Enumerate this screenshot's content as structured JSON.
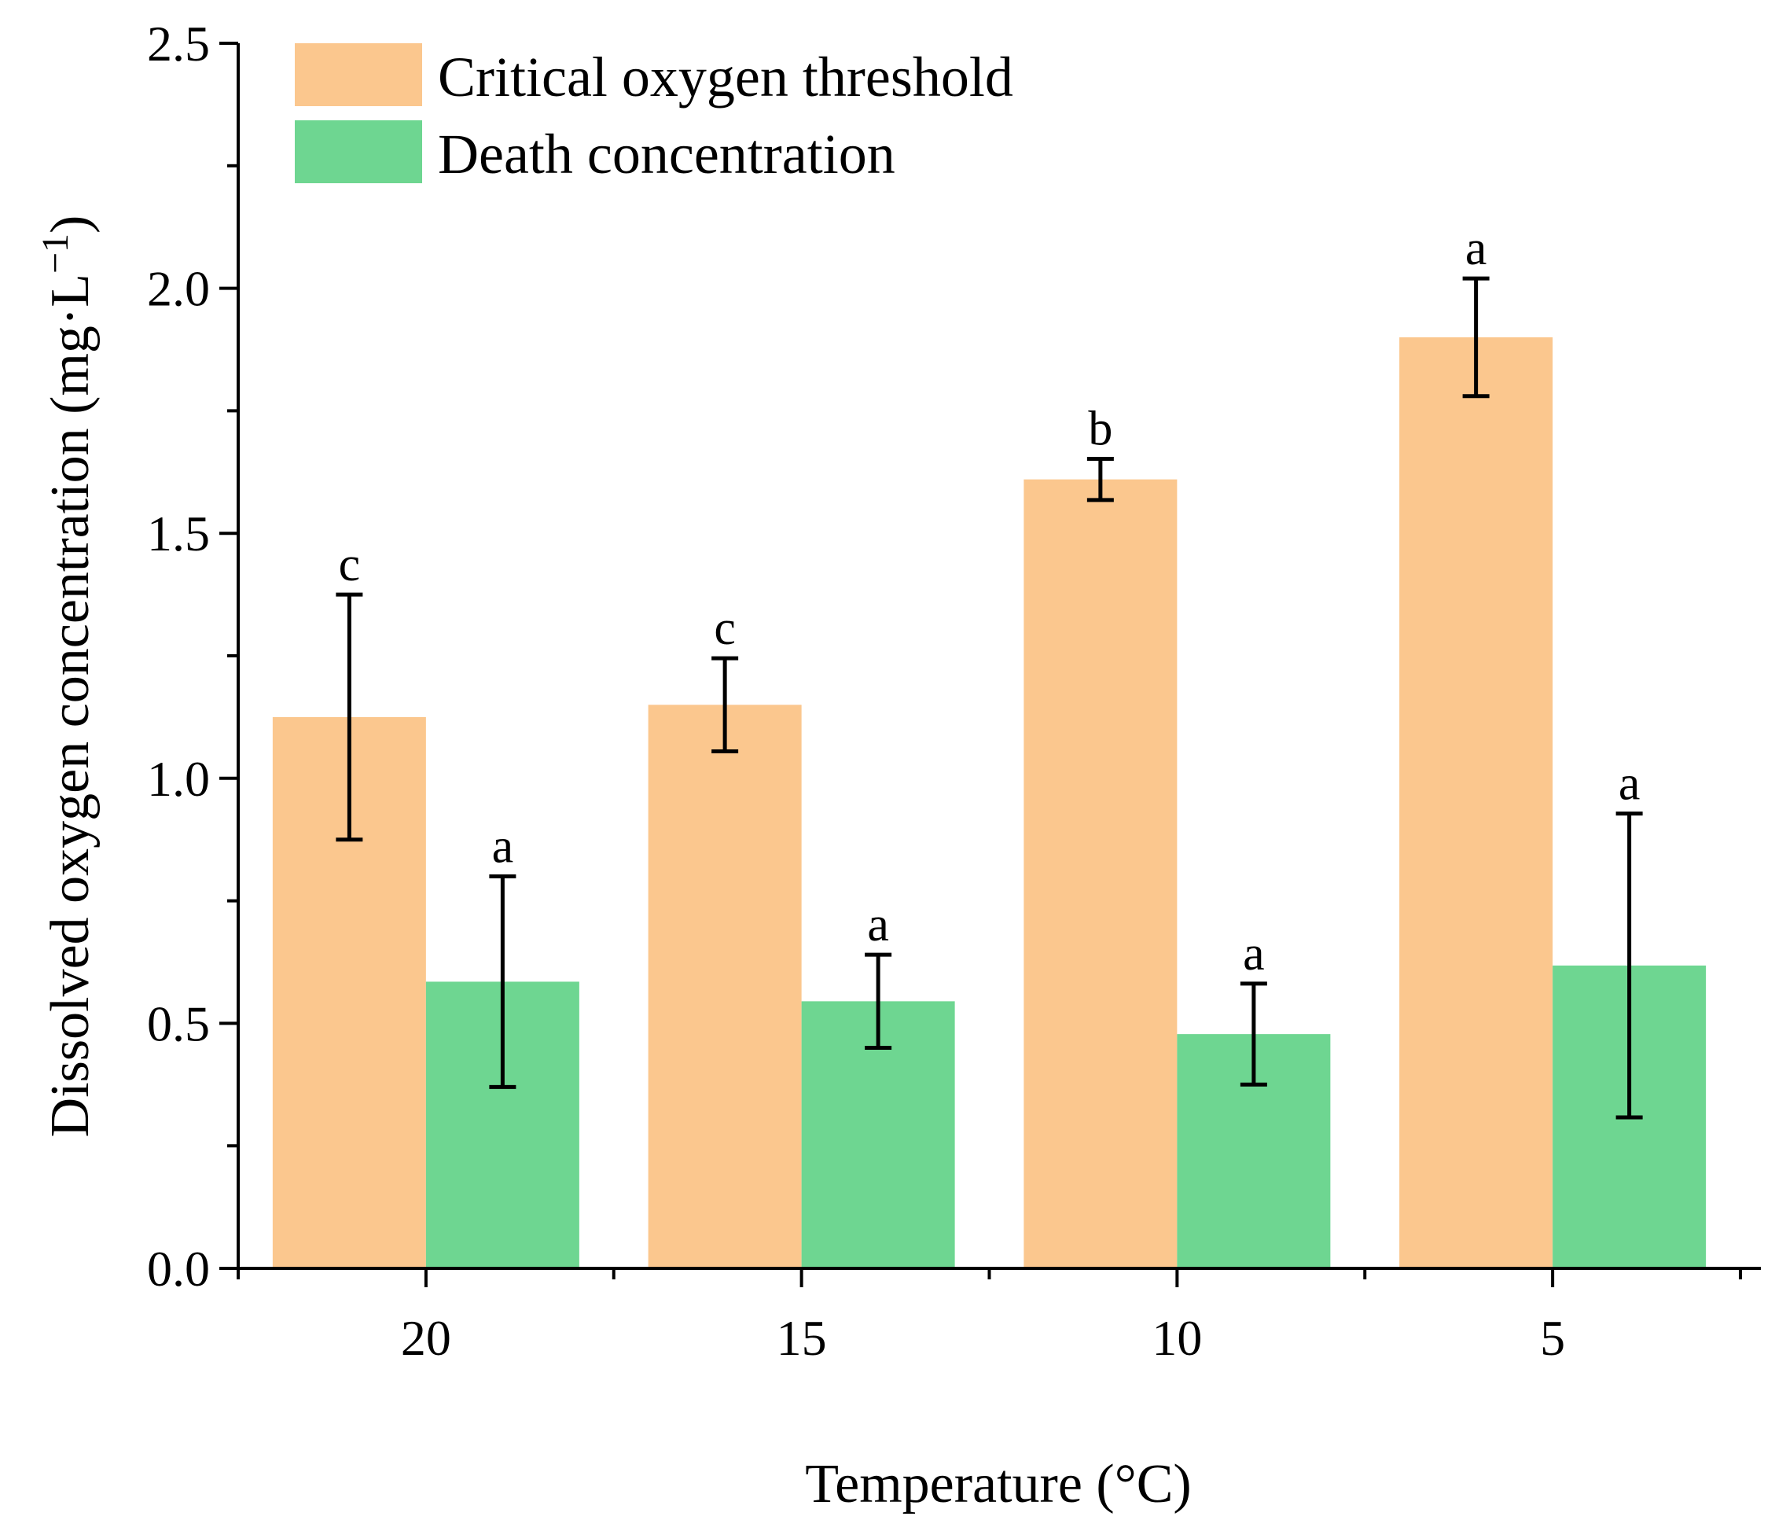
{
  "chart_data": {
    "type": "bar",
    "title": "",
    "xlabel": "Temperature (°C)",
    "ylabel_main": "Dissolved oxygen concentration (mg·L",
    "ylabel_sup": "−1",
    "ylabel_close": ")",
    "categories": [
      "20",
      "15",
      "10",
      "5"
    ],
    "ylim": [
      0,
      2.5
    ],
    "yticks": [
      0.0,
      0.5,
      1.0,
      1.5,
      2.0,
      2.5
    ],
    "ytick_labels": [
      "0.0",
      "0.5",
      "1.0",
      "1.5",
      "2.0",
      "2.5"
    ],
    "grid": false,
    "legend_position": "top-left",
    "series": [
      {
        "name": "Critical oxygen threshold",
        "color": "#FBC78E",
        "values": [
          1.125,
          1.15,
          1.61,
          1.9
        ],
        "errors": [
          0.25,
          0.095,
          0.042,
          0.12
        ],
        "labels": [
          "c",
          "c",
          "b",
          "a"
        ]
      },
      {
        "name": "Death concentration",
        "color": "#6ED691",
        "values": [
          0.585,
          0.545,
          0.478,
          0.618
        ],
        "errors": [
          0.215,
          0.095,
          0.103,
          0.31
        ],
        "labels": [
          "a",
          "a",
          "a",
          "a"
        ]
      }
    ]
  }
}
